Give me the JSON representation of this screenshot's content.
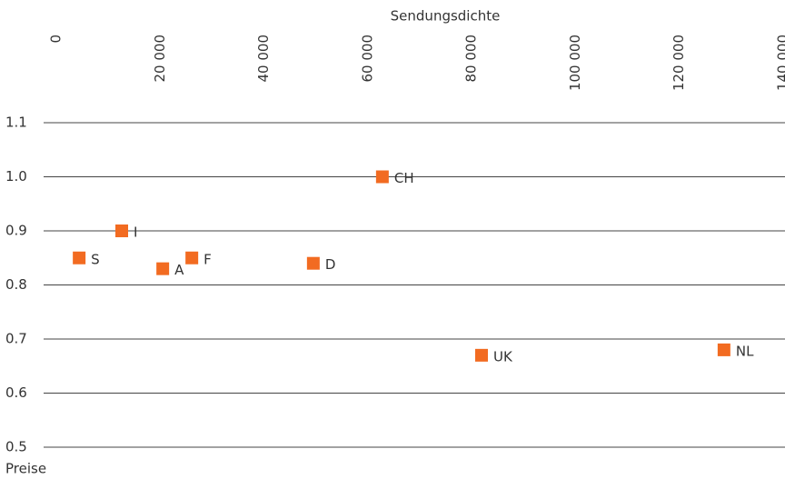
{
  "chart_data": {
    "type": "scatter",
    "xlabel": "Sendungsdichte",
    "ylabel": "Preise",
    "color": "#f26b21",
    "labels": [
      "S",
      "I",
      "A",
      "F",
      "D",
      "CH",
      "UK",
      "NL"
    ],
    "x": [
      4400,
      12600,
      20500,
      26100,
      49500,
      62800,
      81900,
      128600
    ],
    "values": [
      0.85,
      0.9,
      0.83,
      0.85,
      0.84,
      1.0,
      0.67,
      0.68
    ],
    "xlim": [
      0,
      140000
    ],
    "xticks": [
      0,
      {
        "value": 20000,
        "label": "20 000"
      },
      {
        "value": 40000,
        "label": "40 000"
      },
      {
        "value": 60000,
        "label": "60 000"
      },
      {
        "value": 80000,
        "label": "80 000"
      },
      {
        "value": 100000,
        "label": "100 000"
      },
      {
        "value": 120000,
        "label": "120 000"
      },
      {
        "value": 140000,
        "label": "140 000"
      }
    ],
    "ylim": [
      0.5,
      1.1
    ],
    "yticks": [
      0.5,
      0.6,
      0.7,
      0.8,
      0.9,
      {
        "value": 1,
        "label": "1.0"
      },
      1.1
    ],
    "grid": true
  }
}
